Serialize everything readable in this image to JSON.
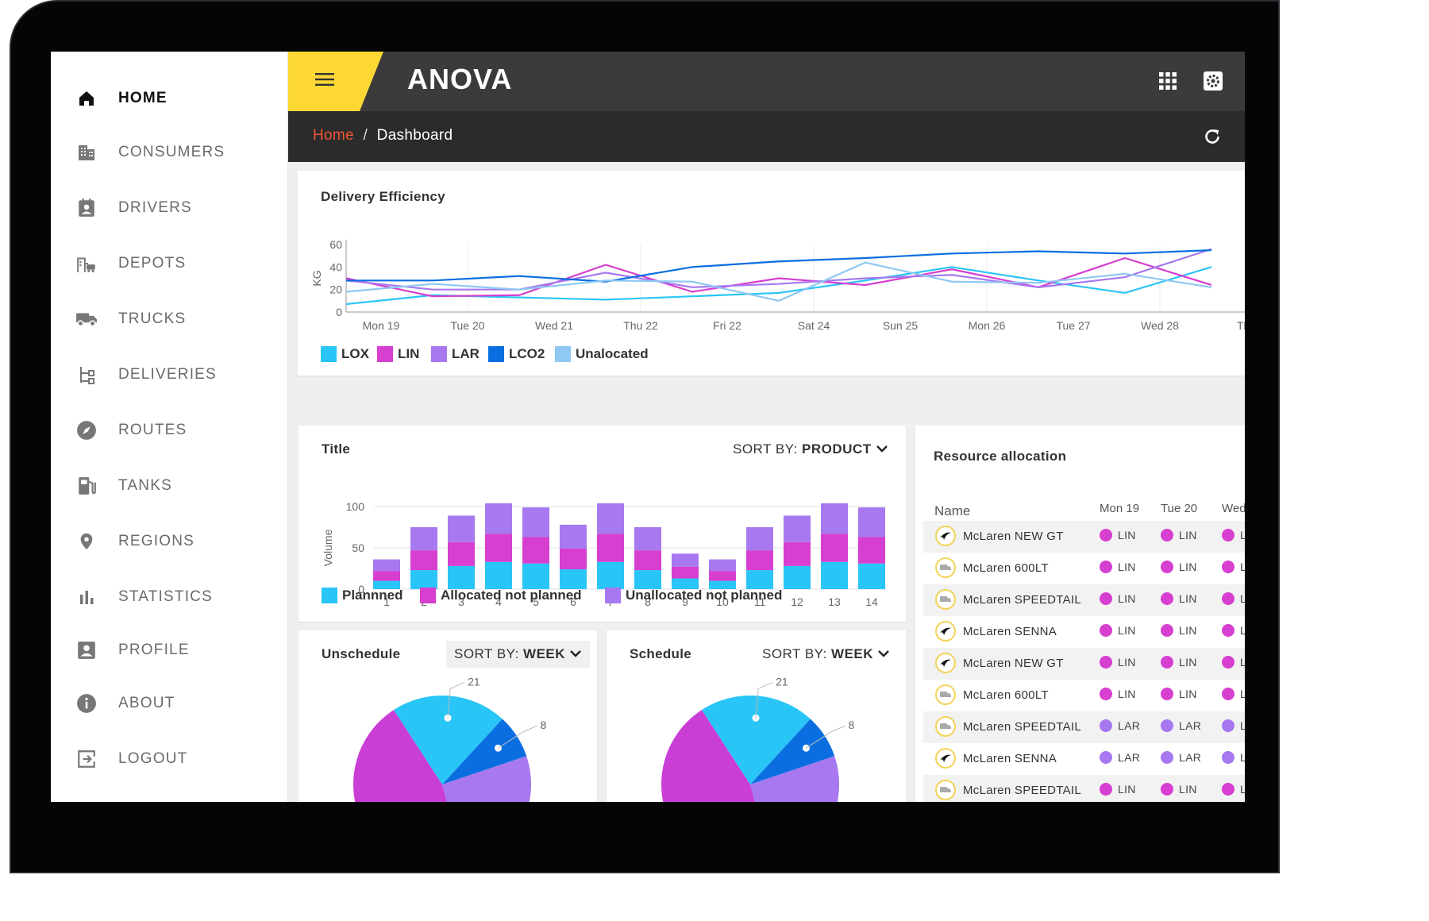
{
  "brand": {
    "name": "ANOVA",
    "accent": "#fdd835"
  },
  "sidebar": {
    "items": [
      {
        "label": "HOME",
        "icon": "home-icon",
        "active": true
      },
      {
        "label": "CONSUMERS",
        "icon": "building-icon"
      },
      {
        "label": "DRIVERS",
        "icon": "driver-badge-icon"
      },
      {
        "label": "DEPOTS",
        "icon": "depot-icon"
      },
      {
        "label": "TRUCKS",
        "icon": "truck-icon"
      },
      {
        "label": "DELIVERIES",
        "icon": "delivery-tree-icon"
      },
      {
        "label": "ROUTES",
        "icon": "compass-icon"
      },
      {
        "label": "TANKS",
        "icon": "fuel-tank-icon"
      },
      {
        "label": "REGIONS",
        "icon": "map-pin-icon"
      },
      {
        "label": "STATISTICS",
        "icon": "bar-chart-icon"
      },
      {
        "label": "PROFILE",
        "icon": "profile-icon"
      },
      {
        "label": "ABOUT",
        "icon": "info-icon"
      },
      {
        "label": "LOGOUT",
        "icon": "logout-icon"
      }
    ]
  },
  "breadcrumb": {
    "home": "Home",
    "separator": "/",
    "current": "Dashboard"
  },
  "header": {
    "apps_icon": "apps-grid-icon",
    "settings_icon": "gear-icon",
    "refresh_icon": "refresh-icon",
    "menu_icon": "hamburger-icon"
  },
  "chart_data": [
    {
      "type": "line",
      "title": "Delivery Efficiency",
      "ylabel": "KG",
      "ylim": [
        0,
        60
      ],
      "yticks": [
        0,
        20,
        40,
        60
      ],
      "categories": [
        "Mon 19",
        "Tue 20",
        "Wed 21",
        "Thu 22",
        "Fri 22",
        "Sat 24",
        "Sun 25",
        "Mon 26",
        "Tue 27",
        "Wed 28",
        "Thu"
      ],
      "series": [
        {
          "name": "LOX",
          "color": "#29c5f6",
          "values": [
            7,
            15,
            13,
            11,
            14,
            17,
            28,
            40,
            28,
            17,
            40
          ]
        },
        {
          "name": "LIN",
          "color": "#d63fcf",
          "values": [
            30,
            14,
            15,
            42,
            18,
            30,
            24,
            38,
            22,
            48,
            24
          ]
        },
        {
          "name": "LAR",
          "color": "#a778f0",
          "values": [
            28,
            20,
            20,
            35,
            22,
            25,
            30,
            33,
            22,
            31,
            56
          ]
        },
        {
          "name": "LCO2",
          "color": "#0a6ee0",
          "values": [
            28,
            28,
            32,
            27,
            40,
            45,
            48,
            52,
            54,
            52,
            55
          ]
        },
        {
          "name": "Unalocated",
          "color": "#8ec8f3",
          "values": [
            18,
            25,
            20,
            28,
            27,
            10,
            44,
            27,
            26,
            34,
            22
          ]
        }
      ],
      "legend": [
        "LOX",
        "LIN",
        "LAR",
        "LCO2",
        "Unalocated"
      ]
    },
    {
      "type": "bar",
      "title": "Title",
      "sort_label": "SORT BY:",
      "sort_value": "PRODUCT",
      "ylabel": "Volume",
      "ylim": [
        0,
        100
      ],
      "yticks": [
        0,
        50,
        100
      ],
      "categories": [
        "1",
        "2",
        "3",
        "4",
        "5",
        "6",
        "7",
        "8",
        "9",
        "10",
        "11",
        "12",
        "13",
        "14"
      ],
      "series": [
        {
          "name": "Plannned",
          "color": "#29c5f6",
          "values": [
            10,
            23,
            28,
            33,
            31,
            24,
            33,
            23,
            13,
            10,
            23,
            28,
            33,
            31
          ]
        },
        {
          "name": "Allocated not planned",
          "color": "#d63fcf",
          "values": [
            12,
            24,
            29,
            34,
            32,
            25,
            34,
            24,
            14,
            12,
            24,
            29,
            34,
            32
          ]
        },
        {
          "name": "Unallocated not planned",
          "color": "#a778f0",
          "values": [
            14,
            28,
            32,
            37,
            36,
            29,
            37,
            28,
            16,
            14,
            28,
            32,
            37,
            36
          ]
        }
      ]
    },
    {
      "type": "pie",
      "title": "Unschedule",
      "sort_label": "SORT BY:",
      "sort_value": "WEEK",
      "slices": [
        {
          "label": "",
          "value": 45,
          "color": "#c93fd6"
        },
        {
          "label": "21",
          "value": 21,
          "color": "#29c5f6"
        },
        {
          "label": "8",
          "value": 8,
          "color": "#0a6ee0"
        },
        {
          "label": "26",
          "value": 26,
          "color": "#a778f0"
        }
      ]
    },
    {
      "type": "pie",
      "title": "Schedule",
      "sort_label": "SORT BY:",
      "sort_value": "WEEK",
      "slices": [
        {
          "label": "",
          "value": 45,
          "color": "#c93fd6"
        },
        {
          "label": "21",
          "value": 21,
          "color": "#29c5f6"
        },
        {
          "label": "8",
          "value": 8,
          "color": "#0a6ee0"
        },
        {
          "label": "26",
          "value": 26,
          "color": "#a778f0"
        }
      ]
    }
  ],
  "resources": {
    "title": "Resource allocation",
    "columns": [
      "Name",
      "Mon 19",
      "Tue 20",
      "Wed"
    ],
    "rows": [
      {
        "name": "McLaren NEW GT",
        "icon": "swoosh-icon",
        "a": "LIN",
        "b": "LIN",
        "c": "L",
        "color": "#d63fcf"
      },
      {
        "name": "McLaren 600LT",
        "icon": "truck-icon",
        "a": "LIN",
        "b": "LIN",
        "c": "L",
        "color": "#d63fcf"
      },
      {
        "name": "McLaren SPEEDTAIL",
        "icon": "truck-icon",
        "a": "LIN",
        "b": "LIN",
        "c": "L",
        "color": "#d63fcf"
      },
      {
        "name": "McLaren SENNA",
        "icon": "swoosh-icon",
        "a": "LIN",
        "b": "LIN",
        "c": "L",
        "color": "#d63fcf"
      },
      {
        "name": "McLaren NEW GT",
        "icon": "swoosh-icon",
        "a": "LIN",
        "b": "LIN",
        "c": "L",
        "color": "#d63fcf"
      },
      {
        "name": "McLaren 600LT",
        "icon": "truck-icon",
        "a": "LIN",
        "b": "LIN",
        "c": "L",
        "color": "#d63fcf"
      },
      {
        "name": "McLaren SPEEDTAIL",
        "icon": "truck-icon",
        "a": "LAR",
        "b": "LAR",
        "c": "L",
        "color": "#a778f0"
      },
      {
        "name": "McLaren SENNA",
        "icon": "swoosh-icon",
        "a": "LAR",
        "b": "LAR",
        "c": "L",
        "color": "#a778f0"
      },
      {
        "name": "McLaren SPEEDTAIL",
        "icon": "truck-icon",
        "a": "LIN",
        "b": "LIN",
        "c": "L",
        "color": "#d63fcf"
      }
    ]
  }
}
